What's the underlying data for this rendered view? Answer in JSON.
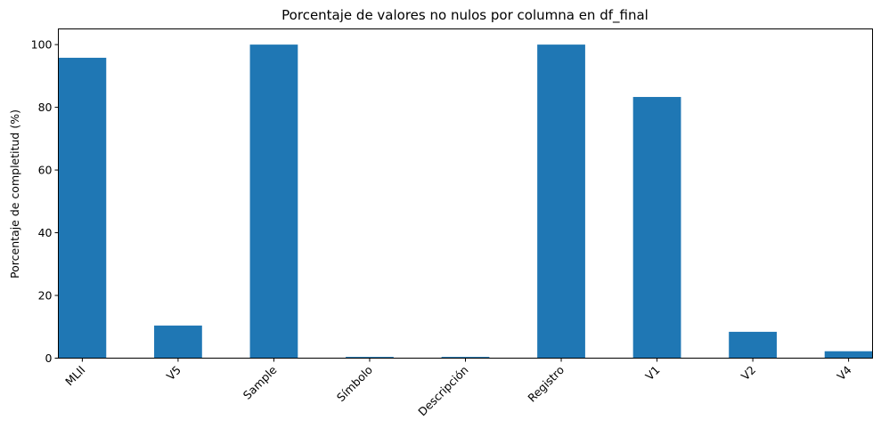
{
  "chart_data": {
    "type": "bar",
    "title": "Porcentaje de valores no nulos por columna en df_final",
    "xlabel": "",
    "ylabel": "Porcentaje de completitud (%)",
    "categories": [
      "MLII",
      "V5",
      "Sample",
      "Símbolo",
      "Descripción",
      "Registro",
      "V1",
      "V2",
      "V4"
    ],
    "values": [
      95.8,
      10.4,
      100.0,
      0.4,
      0.4,
      100.0,
      83.3,
      8.4,
      2.2
    ],
    "ylim": [
      0,
      105
    ],
    "yticks": [
      0,
      20,
      40,
      60,
      80,
      100
    ],
    "grid": false,
    "color": "#1f77b4"
  }
}
